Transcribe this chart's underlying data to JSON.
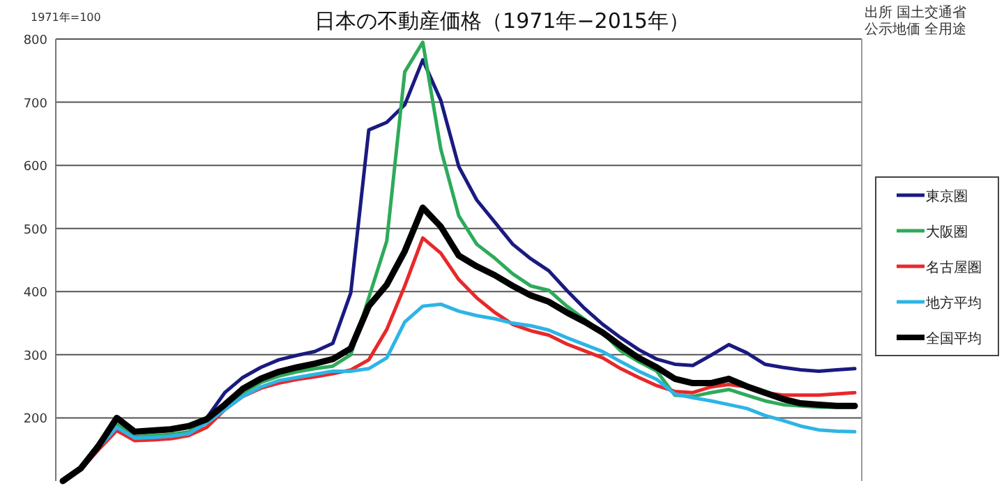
{
  "chart_data": {
    "type": "line",
    "title": "日本の不動産価格（1971年−2015年）",
    "ylabel": "1971年=100",
    "annotations": [
      "出所 国土交通省",
      "公示地価 全用途"
    ],
    "categories": [
      null,
      null,
      null,
      null,
      null,
      null,
      null,
      null,
      null,
      null,
      null,
      null,
      null,
      null,
      null,
      null,
      null,
      null,
      null,
      null,
      null,
      null,
      null,
      null,
      null,
      null,
      null,
      null,
      null,
      null,
      null,
      null,
      null,
      null,
      null,
      null,
      null,
      null,
      null,
      null,
      null,
      null,
      null,
      null,
      null
    ],
    "ylim": [
      100,
      800
    ],
    "yticks": [
      200,
      300,
      400,
      500,
      600,
      700,
      800
    ],
    "grid": "y",
    "legend": "right",
    "marker": "none",
    "line_style": "solid",
    "series": [
      {
        "name": "東京圏",
        "color": "#1a1a80",
        "values": [
          100,
          122,
          160,
          200,
          177,
          179,
          181,
          186,
          200,
          240,
          264,
          280,
          292,
          299,
          305,
          318,
          398,
          656,
          668,
          696,
          767,
          703,
          598,
          545,
          510,
          475,
          452,
          433,
          402,
          373,
          348,
          327,
          308,
          293,
          285,
          283,
          299,
          316,
          303,
          285,
          280,
          276,
          274,
          276,
          278
        ]
      },
      {
        "name": "大阪圏",
        "color": "#2eaa5a",
        "values": [
          null,
          null,
          156,
          190,
          170,
          172,
          174,
          178,
          193,
          218,
          240,
          256,
          266,
          273,
          278,
          282,
          300,
          390,
          480,
          748,
          795,
          626,
          520,
          475,
          453,
          428,
          409,
          402,
          377,
          356,
          335,
          306,
          289,
          274,
          236,
          234,
          240,
          245,
          236,
          227,
          221,
          219,
          217,
          217,
          217
        ]
      },
      {
        "name": "名古屋圏",
        "color": "#e8282a",
        "values": [
          100,
          118,
          150,
          180,
          164,
          165,
          167,
          172,
          185,
          213,
          234,
          247,
          255,
          261,
          265,
          270,
          276,
          292,
          340,
          409,
          485,
          461,
          419,
          390,
          367,
          348,
          338,
          331,
          317,
          306,
          295,
          278,
          264,
          251,
          242,
          240,
          249,
          253,
          249,
          240,
          236,
          236,
          236,
          238,
          240
        ]
      },
      {
        "name": "地方平均",
        "color": "#2eb4e6",
        "values": [
          100,
          119,
          153,
          185,
          168,
          169,
          171,
          175,
          192,
          213,
          234,
          249,
          259,
          264,
          269,
          274,
          274,
          278,
          295,
          352,
          377,
          380,
          369,
          362,
          357,
          350,
          346,
          339,
          327,
          316,
          305,
          289,
          274,
          261,
          238,
          232,
          227,
          221,
          215,
          204,
          196,
          187,
          181,
          179,
          178
        ]
      },
      {
        "name": "全国平均",
        "color": "#000000",
        "values": [
          100,
          120,
          156,
          200,
          178,
          180,
          182,
          187,
          198,
          221,
          246,
          262,
          273,
          280,
          286,
          293,
          310,
          377,
          411,
          464,
          533,
          503,
          457,
          440,
          426,
          409,
          394,
          384,
          367,
          352,
          335,
          314,
          295,
          280,
          262,
          255,
          255,
          262,
          250,
          240,
          230,
          223,
          221,
          219,
          219
        ]
      }
    ]
  }
}
